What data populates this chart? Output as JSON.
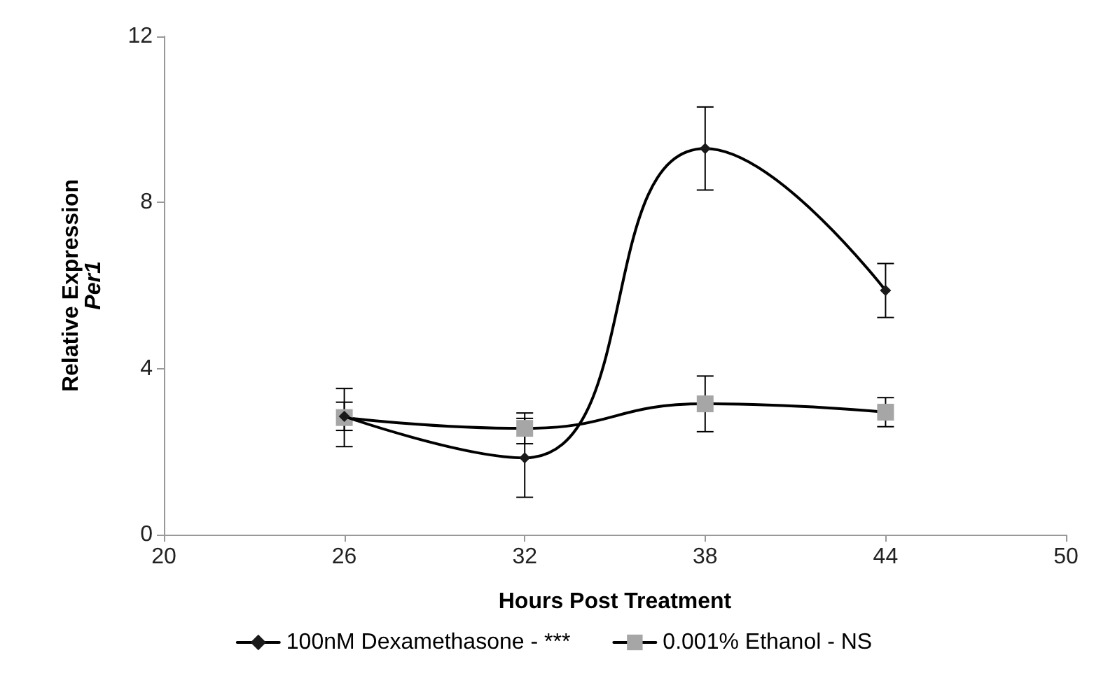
{
  "chart_data": {
    "type": "line",
    "xlabel": "Hours Post Treatment",
    "ylabel": "Relative Expression\nPer1",
    "x": [
      26,
      32,
      38,
      44
    ],
    "series": [
      {
        "name": "100nM Dexamethasone - ***",
        "color": "#1a1a1a",
        "marker": "diamond",
        "values": [
          2.85,
          1.85,
          9.3,
          5.88
        ],
        "errors": [
          0.34,
          0.95,
          1.0,
          0.65
        ]
      },
      {
        "name": "0.001% Ethanol - NS",
        "color": "#a6a6a6",
        "marker": "square",
        "values": [
          2.82,
          2.56,
          3.15,
          2.95
        ],
        "errors": [
          0.7,
          0.37,
          0.67,
          0.35
        ]
      }
    ],
    "xlim": [
      20,
      50
    ],
    "xticks": [
      20,
      26,
      32,
      38,
      44,
      50
    ],
    "ylim": [
      0,
      12
    ],
    "yticks": [
      0,
      4,
      8,
      12
    ],
    "grid": false,
    "legend": "bottom",
    "line_style": "solid"
  }
}
